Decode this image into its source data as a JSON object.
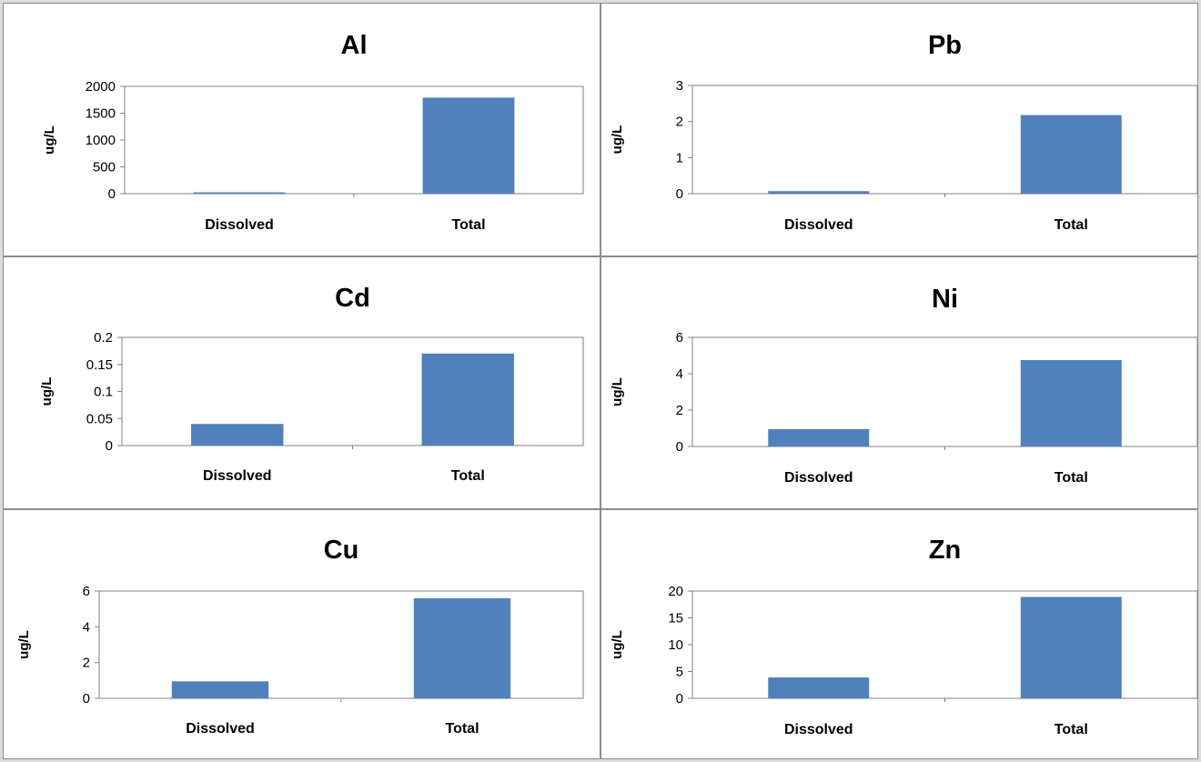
{
  "chart_data": [
    {
      "type": "bar",
      "title": "Al",
      "ylabel": "ug/L",
      "categories": [
        "Dissolved",
        "Total"
      ],
      "values": [
        25,
        1790
      ],
      "ylim": [
        0,
        2000
      ],
      "yticks": [
        "0",
        "500",
        "1000",
        "1500",
        "2000"
      ],
      "color": "#4F81BD",
      "grid": false
    },
    {
      "type": "bar",
      "title": "Pb",
      "ylabel": "ug/L",
      "categories": [
        "Dissolved",
        "Total"
      ],
      "values": [
        0.07,
        2.18
      ],
      "ylim": [
        0,
        3
      ],
      "yticks": [
        "0",
        "1",
        "2",
        "3"
      ],
      "color": "#4F81BD",
      "grid": false
    },
    {
      "type": "bar",
      "title": "Cd",
      "ylabel": "ug/L",
      "categories": [
        "Dissolved",
        "Total"
      ],
      "values": [
        0.04,
        0.17
      ],
      "ylim": [
        0,
        0.2
      ],
      "yticks": [
        "0",
        "0.05",
        "0.1",
        "0.15",
        "0.2"
      ],
      "color": "#4F81BD",
      "grid": false
    },
    {
      "type": "bar",
      "title": "Ni",
      "ylabel": "ug/L",
      "categories": [
        "Dissolved",
        "Total"
      ],
      "values": [
        0.95,
        4.75
      ],
      "ylim": [
        0,
        6
      ],
      "yticks": [
        "0",
        "2",
        "4",
        "6"
      ],
      "color": "#4F81BD",
      "grid": false
    },
    {
      "type": "bar",
      "title": "Cu",
      "ylabel": "ug/L",
      "categories": [
        "Dissolved",
        "Total"
      ],
      "values": [
        0.95,
        5.6
      ],
      "ylim": [
        0,
        6
      ],
      "yticks": [
        "0",
        "2",
        "4",
        "6"
      ],
      "color": "#4F81BD",
      "grid": false
    },
    {
      "type": "bar",
      "title": "Zn",
      "ylabel": "ug/L",
      "categories": [
        "Dissolved",
        "Total"
      ],
      "values": [
        3.9,
        18.9
      ],
      "ylim": [
        0,
        20
      ],
      "yticks": [
        "0",
        "5",
        "10",
        "15",
        "20"
      ],
      "color": "#4F81BD",
      "grid": false
    }
  ]
}
